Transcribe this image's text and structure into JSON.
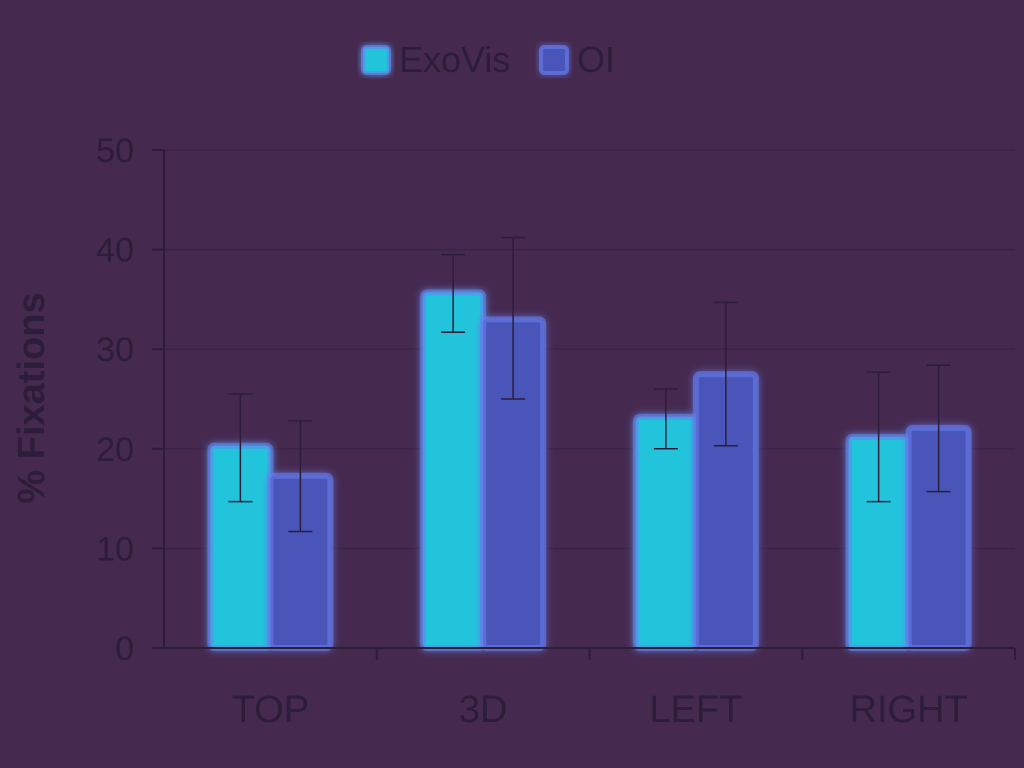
{
  "chart_data": {
    "type": "bar",
    "categories": [
      "TOP",
      "3D",
      "LEFT",
      "RIGHT"
    ],
    "series": [
      {
        "name": "ExoVis",
        "values": [
          20.3,
          35.7,
          23.2,
          21.2
        ],
        "err_low": [
          14.7,
          31.7,
          20.0,
          14.7
        ],
        "err_high": [
          25.5,
          39.5,
          26.0,
          27.7
        ]
      },
      {
        "name": "OI",
        "values": [
          17.3,
          33.0,
          27.5,
          22.1
        ],
        "err_low": [
          11.7,
          25.0,
          20.3,
          15.7
        ],
        "err_high": [
          22.8,
          41.2,
          34.7,
          28.4
        ]
      }
    ],
    "ylabel": "% Fixations",
    "xlabel": "",
    "ylim": [
      0,
      50
    ],
    "yticks": [
      0,
      10,
      20,
      30,
      40,
      50
    ],
    "grid": true,
    "legend_position": "top-center",
    "colors": {
      "background": "#45294f",
      "ExoVis": "#22c4dc",
      "OI": "#4a55b8",
      "glow": "#6a7ff0",
      "axis": "#2c1d38",
      "grid": "#3a2446"
    }
  }
}
